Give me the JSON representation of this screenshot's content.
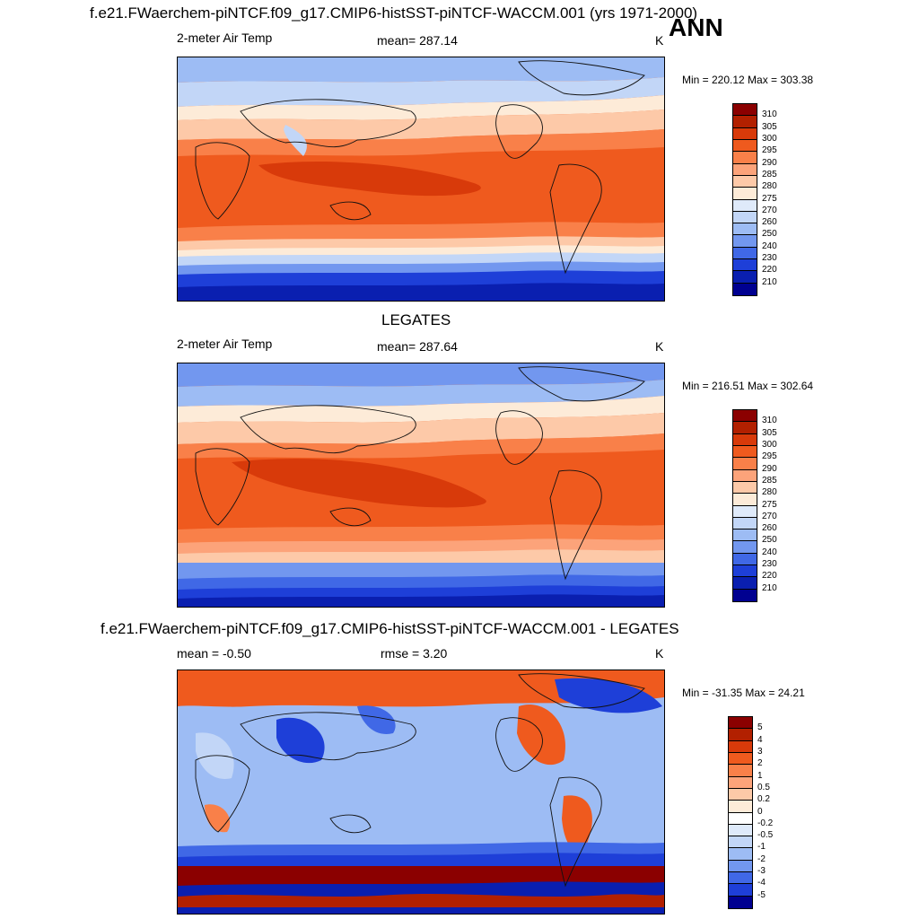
{
  "header": {
    "title": "f.e21.FWaerchem-piNTCF.f09_g17.CMIP6-histSST-piNTCF-WACCM.001 (yrs 1971-2000)",
    "season": "ANN"
  },
  "panels": [
    {
      "id": "model",
      "title": "",
      "left_label": "2-meter Air Temp",
      "center_label": "mean= 287.14",
      "units": "K",
      "minmax": "Min = 220.12 Max = 303.38",
      "colorbar": {
        "levels": [
          "310",
          "305",
          "300",
          "295",
          "290",
          "285",
          "280",
          "275",
          "270",
          "260",
          "250",
          "240",
          "230",
          "220",
          "210"
        ],
        "colors": [
          "#8b0000",
          "#b22000",
          "#d83a0a",
          "#ef5a1e",
          "#f98049",
          "#fca37a",
          "#fdc9a8",
          "#fdebd8",
          "#dfeafa",
          "#c2d6f7",
          "#9dbcf4",
          "#7297ef",
          "#4068e6",
          "#1e3fd8",
          "#0a1fb0",
          "#000090"
        ]
      }
    },
    {
      "id": "obs",
      "title": "LEGATES",
      "left_label": "2-meter Air Temp",
      "center_label": "mean= 287.64",
      "units": "K",
      "minmax": "Min = 216.51 Max = 302.64",
      "colorbar": {
        "levels": [
          "310",
          "305",
          "300",
          "295",
          "290",
          "285",
          "280",
          "275",
          "270",
          "260",
          "250",
          "240",
          "230",
          "220",
          "210"
        ],
        "colors": [
          "#8b0000",
          "#b22000",
          "#d83a0a",
          "#ef5a1e",
          "#f98049",
          "#fca37a",
          "#fdc9a8",
          "#fdebd8",
          "#dfeafa",
          "#c2d6f7",
          "#9dbcf4",
          "#7297ef",
          "#4068e6",
          "#1e3fd8",
          "#0a1fb0",
          "#000090"
        ]
      }
    },
    {
      "id": "diff",
      "title": "f.e21.FWaerchem-piNTCF.f09_g17.CMIP6-histSST-piNTCF-WACCM.001 - LEGATES",
      "left_label": "mean =  -0.50",
      "center_label": "rmse =   3.20",
      "units": "K",
      "minmax": "Min = -31.35 Max =  24.21",
      "colorbar": {
        "levels": [
          "5",
          "4",
          "3",
          "2",
          "1",
          "0.5",
          "0.2",
          "0",
          "-0.2",
          "-0.5",
          "-1",
          "-2",
          "-3",
          "-4",
          "-5"
        ],
        "colors": [
          "#8b0000",
          "#b22000",
          "#d83a0a",
          "#ef5a1e",
          "#f98049",
          "#fca37a",
          "#fdc9a8",
          "#fdebd8",
          "#ffffff",
          "#dfeafa",
          "#c2d6f7",
          "#9dbcf4",
          "#7297ef",
          "#4068e6",
          "#1e3fd8",
          "#000090"
        ]
      }
    }
  ]
}
